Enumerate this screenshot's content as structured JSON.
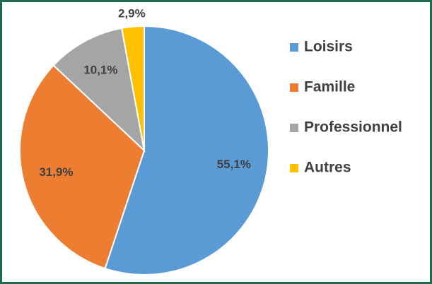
{
  "chart_data": {
    "type": "pie",
    "categories": [
      "Loisirs",
      "Famille",
      "Professionnel",
      "Autres"
    ],
    "values": [
      55.1,
      31.9,
      10.1,
      2.9
    ],
    "value_labels": [
      "55,1%",
      "31,9%",
      "10,1%",
      "2,9%"
    ],
    "colors": [
      "#5b9bd5",
      "#ed7d31",
      "#a5a5a5",
      "#ffc000"
    ],
    "legend": "right"
  }
}
